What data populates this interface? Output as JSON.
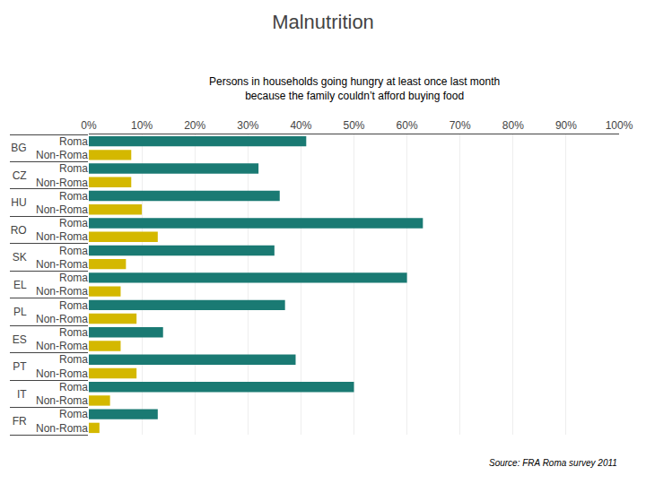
{
  "chart_data": {
    "type": "bar",
    "orientation": "horizontal",
    "title": "Malnutrition",
    "subtitle": "Persons in households going hungry at least once last month\nbecause the family couldn’t afford buying food",
    "annotations": [
      "Source: FRA Roma survey 2011"
    ],
    "categories": [
      "BG",
      "CZ",
      "HU",
      "RO",
      "SK",
      "EL",
      "PL",
      "ES",
      "PT",
      "IT",
      "FR"
    ],
    "series": [
      {
        "name": "Roma",
        "color": "#1a7a73",
        "values": [
          41,
          32,
          36,
          63,
          35,
          60,
          37,
          14,
          39,
          50,
          13
        ]
      },
      {
        "name": "Non-Roma",
        "color": "#d4b800",
        "values": [
          8,
          8,
          10,
          13,
          7,
          6,
          9,
          6,
          9,
          4,
          2
        ]
      }
    ],
    "xlim": [
      0,
      100
    ],
    "xticks": [
      {
        "value": 0,
        "label": "0%"
      },
      {
        "value": 10,
        "label": "10%"
      },
      {
        "value": 20,
        "label": "20%"
      },
      {
        "value": 30,
        "label": "30%"
      },
      {
        "value": 40,
        "label": "40%"
      },
      {
        "value": 50,
        "label": "50%"
      },
      {
        "value": 60,
        "label": "60%"
      },
      {
        "value": 70,
        "label": "70%"
      },
      {
        "value": 80,
        "label": "80%"
      },
      {
        "value": 90,
        "label": "90%"
      },
      {
        "value": 100,
        "label": "100%"
      }
    ],
    "grid": true
  }
}
